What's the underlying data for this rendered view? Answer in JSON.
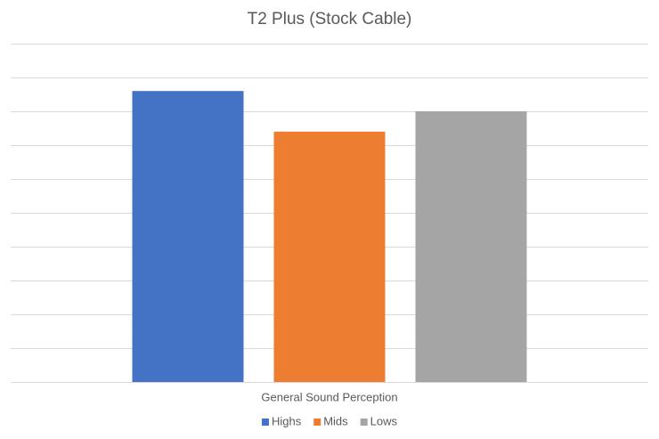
{
  "chart_data": {
    "type": "bar",
    "title": "T2 Plus (Stock Cable)",
    "categories": [
      "General Sound Perception"
    ],
    "series": [
      {
        "name": "Highs",
        "color": "#4472c4",
        "values": [
          8.6
        ]
      },
      {
        "name": "Mids",
        "color": "#ed7d31",
        "values": [
          7.4
        ]
      },
      {
        "name": "Lows",
        "color": "#a5a5a5",
        "values": [
          8.0
        ]
      }
    ],
    "ylim": [
      0,
      10
    ],
    "yticks": [
      0,
      1,
      2,
      3,
      4,
      5,
      6,
      7,
      8,
      9,
      10
    ],
    "grid": true,
    "legend": "bottom"
  }
}
